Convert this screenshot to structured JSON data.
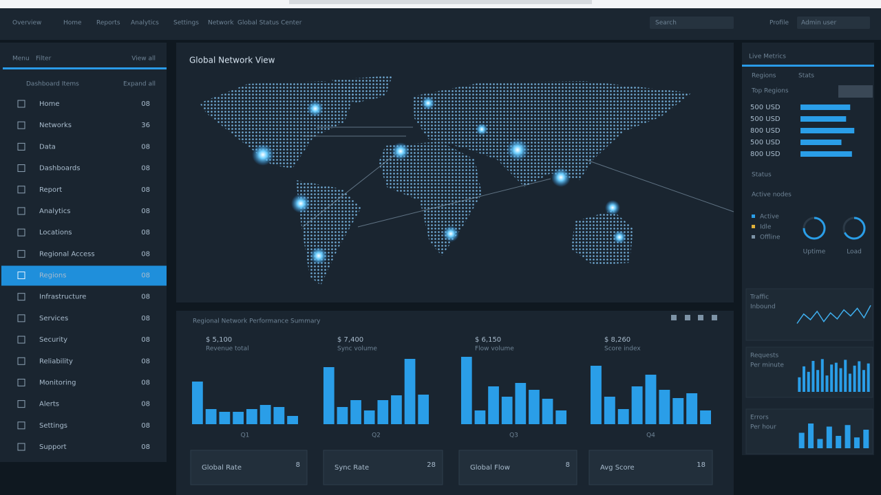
{
  "topbar": {
    "nav": [
      "Overview",
      "Home",
      "Reports",
      "Analytics",
      "Settings",
      "Network",
      "Global Status Center"
    ],
    "search": "Search",
    "user_menu": "Profile",
    "account": "Admin user"
  },
  "sidebar": {
    "title": "Menu",
    "subtitle": "Filter",
    "action": "View all",
    "section": "Dashboard Items",
    "section_action": "Expand all",
    "active": 8,
    "items": [
      {
        "label": "Home",
        "badge": "08"
      },
      {
        "label": "Networks",
        "badge": "36"
      },
      {
        "label": "Data",
        "badge": "08"
      },
      {
        "label": "Dashboards",
        "badge": "08"
      },
      {
        "label": "Report",
        "badge": "08"
      },
      {
        "label": "Analytics",
        "badge": "08"
      },
      {
        "label": "Locations",
        "badge": "08"
      },
      {
        "label": "Regional Access",
        "badge": "08"
      },
      {
        "label": "Regions",
        "badge": "08"
      },
      {
        "label": "Infrastructure",
        "badge": "08"
      },
      {
        "label": "Services",
        "badge": "08"
      },
      {
        "label": "Security",
        "badge": "08"
      },
      {
        "label": "Reliability",
        "badge": "08"
      },
      {
        "label": "Monitoring",
        "badge": "08"
      },
      {
        "label": "Alerts",
        "badge": "08"
      },
      {
        "label": "Settings",
        "badge": "08"
      },
      {
        "label": "Support",
        "badge": "08"
      }
    ]
  },
  "map": {
    "title": "Global Network View"
  },
  "performance": {
    "title": "Regional Network Performance Summary",
    "charts": [
      {
        "value_label": "$ 5,100",
        "caption": "Revenue total",
        "x_label": "Q1",
        "bars": [
          62,
          22,
          18,
          18,
          22,
          28,
          25,
          12
        ],
        "card_label": "Global Rate",
        "card_value": "8"
      },
      {
        "value_label": "$ 7,400",
        "caption": "Sync volume",
        "x_label": "Q2",
        "bars": [
          83,
          25,
          35,
          20,
          35,
          42,
          95,
          43
        ],
        "card_label": "Sync Rate",
        "card_value": "28"
      },
      {
        "value_label": "$ 6,150",
        "caption": "Flow volume",
        "x_label": "Q3",
        "bars": [
          98,
          20,
          55,
          40,
          60,
          50,
          37,
          20
        ],
        "card_label": "Global Flow",
        "card_value": "8"
      },
      {
        "value_label": "$ 8,260",
        "caption": "Score index",
        "x_label": "Q4",
        "bars": [
          85,
          40,
          22,
          55,
          72,
          50,
          38,
          45,
          20
        ],
        "card_label": "Avg Score",
        "card_value": "18"
      }
    ]
  },
  "right": {
    "title": "Live Metrics",
    "tabs": [
      "Regions",
      "Stats"
    ],
    "section": "Top Regions",
    "rows": [
      {
        "label": "500 USD",
        "value": 85
      },
      {
        "label": "500 USD",
        "value": 78
      },
      {
        "label": "800 USD",
        "value": 92
      },
      {
        "label": "500 USD",
        "value": 70
      },
      {
        "label": "800 USD",
        "value": 88
      }
    ],
    "status_title": "Status",
    "status_caption": "Active nodes",
    "donuts": [
      {
        "label": "Uptime",
        "value": 75
      },
      {
        "label": "Load",
        "value": 68
      }
    ],
    "legend": [
      "Active",
      "Idle",
      "Offline"
    ],
    "sparks": [
      {
        "title": "Traffic",
        "subtitle": "Inbound",
        "type": "line",
        "values": [
          30,
          55,
          40,
          62,
          35,
          58,
          42,
          66,
          50,
          70,
          45,
          78
        ]
      },
      {
        "title": "Requests",
        "subtitle": "Per minute",
        "type": "bar",
        "values": [
          40,
          70,
          55,
          85,
          60,
          90,
          45,
          75,
          80,
          65,
          88,
          50,
          72,
          84,
          60,
          78
        ]
      },
      {
        "title": "Errors",
        "subtitle": "Per hour",
        "type": "bar",
        "values": [
          50,
          80,
          30,
          70,
          40,
          75,
          35,
          60
        ]
      }
    ]
  }
}
